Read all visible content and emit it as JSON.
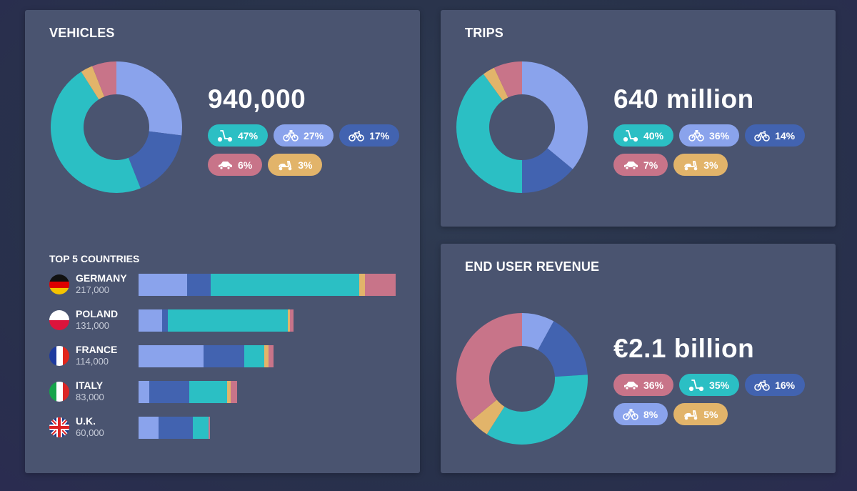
{
  "colors": {
    "scooter": "#2bbfc4",
    "ebike": "#8aa3ec",
    "bike": "#4263b0",
    "car": "#c87489",
    "moped": "#e2b46a"
  },
  "vehicles": {
    "title": "VEHICLES",
    "total": "940,000",
    "pills": [
      {
        "icon": "scooter-icon",
        "label": "47%",
        "key": "scooter"
      },
      {
        "icon": "ebike-icon",
        "label": "27%",
        "key": "ebike"
      },
      {
        "icon": "bike-icon",
        "label": "17%",
        "key": "bike"
      },
      {
        "icon": "car-icon",
        "label": "6%",
        "key": "car"
      },
      {
        "icon": "moped-icon",
        "label": "3%",
        "key": "moped"
      }
    ]
  },
  "trips": {
    "title": "TRIPS",
    "total": "640 million",
    "pills": [
      {
        "icon": "scooter-icon",
        "label": "40%",
        "key": "scooter"
      },
      {
        "icon": "ebike-icon",
        "label": "36%",
        "key": "ebike"
      },
      {
        "icon": "bike-icon",
        "label": "14%",
        "key": "bike"
      },
      {
        "icon": "car-icon",
        "label": "7%",
        "key": "car"
      },
      {
        "icon": "moped-icon",
        "label": "3%",
        "key": "moped"
      }
    ]
  },
  "revenue": {
    "title": "END USER REVENUE",
    "total": "€2.1 billion",
    "pills": [
      {
        "icon": "car-icon",
        "label": "36%",
        "key": "car"
      },
      {
        "icon": "scooter-icon",
        "label": "35%",
        "key": "scooter"
      },
      {
        "icon": "bike-icon",
        "label": "16%",
        "key": "bike"
      },
      {
        "icon": "ebike-icon",
        "label": "8%",
        "key": "ebike"
      },
      {
        "icon": "moped-icon",
        "label": "5%",
        "key": "moped"
      }
    ]
  },
  "countries": {
    "title": "TOP 5 COUNTRIES",
    "rows": [
      {
        "name": "GERMANY",
        "value": "217,000",
        "flag": "germany-flag-icon"
      },
      {
        "name": "POLAND",
        "value": "131,000",
        "flag": "poland-flag-icon"
      },
      {
        "name": "FRANCE",
        "value": "114,000",
        "flag": "france-flag-icon"
      },
      {
        "name": "ITALY",
        "value": "83,000",
        "flag": "italy-flag-icon"
      },
      {
        "name": "U.K.",
        "value": "60,000",
        "flag": "uk-flag-icon"
      }
    ]
  },
  "chart_data": [
    {
      "type": "pie",
      "title": "VEHICLES",
      "categories": [
        "ebike",
        "bike",
        "scooter",
        "moped",
        "car"
      ],
      "values": [
        27,
        17,
        47,
        3,
        6
      ]
    },
    {
      "type": "pie",
      "title": "TRIPS",
      "categories": [
        "ebike",
        "bike",
        "scooter",
        "moped",
        "car"
      ],
      "values": [
        36,
        14,
        40,
        3,
        7
      ]
    },
    {
      "type": "pie",
      "title": "END USER REVENUE",
      "categories": [
        "ebike",
        "bike",
        "scooter",
        "moped",
        "car"
      ],
      "values": [
        8,
        16,
        35,
        5,
        36
      ]
    },
    {
      "type": "bar",
      "title": "TOP 5 COUNTRIES",
      "categories": [
        "GERMANY",
        "POLAND",
        "FRANCE",
        "ITALY",
        "U.K."
      ],
      "stacked": true,
      "horizontal": true,
      "series": [
        {
          "key": "ebike",
          "values": [
            41000,
            20000,
            55000,
            9000,
            17000
          ]
        },
        {
          "key": "bike",
          "values": [
            20000,
            5000,
            34000,
            34000,
            29000
          ]
        },
        {
          "key": "scooter",
          "values": [
            125000,
            101000,
            17000,
            32000,
            13000
          ]
        },
        {
          "key": "moped",
          "values": [
            5000,
            2000,
            4000,
            3000,
            0
          ]
        },
        {
          "key": "car",
          "values": [
            26000,
            3000,
            4000,
            5000,
            1000
          ]
        }
      ]
    }
  ]
}
